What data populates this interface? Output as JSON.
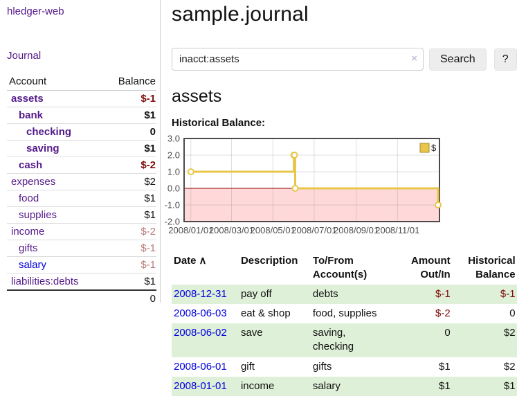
{
  "colors": {
    "link_visited": "#551a8b",
    "link_unvisited": "#0000e0",
    "negative_strong": "#7e0c0c",
    "negative_dim": "#bb7a7a",
    "row_stripe_green": "#dff0d8",
    "series_gold": "#e9c54a",
    "chart_negative_bg": "#ffd9d9",
    "chart_zero_line": "#8f0000"
  },
  "sidebar": {
    "app_title": "hledger-web",
    "journal_label": "Journal",
    "table": {
      "account_header": "Account",
      "balance_header": "Balance",
      "total": "0"
    },
    "accounts": [
      {
        "name": "assets",
        "depth": 0,
        "bold": true,
        "balance": "$-1",
        "neg": "strong",
        "link": "purple"
      },
      {
        "name": "bank",
        "depth": 1,
        "bold": true,
        "balance": "$1",
        "neg": "",
        "link": "purple"
      },
      {
        "name": "checking",
        "depth": 2,
        "bold": true,
        "balance": "0",
        "neg": "",
        "link": "purple"
      },
      {
        "name": "saving",
        "depth": 2,
        "bold": true,
        "balance": "$1",
        "neg": "",
        "link": "purple"
      },
      {
        "name": "cash",
        "depth": 1,
        "bold": true,
        "balance": "$-2",
        "neg": "strong",
        "link": "purple"
      },
      {
        "name": "expenses",
        "depth": 0,
        "bold": false,
        "balance": "$2",
        "neg": "",
        "link": "purple"
      },
      {
        "name": "food",
        "depth": 1,
        "bold": false,
        "balance": "$1",
        "neg": "",
        "link": "purple"
      },
      {
        "name": "supplies",
        "depth": 1,
        "bold": false,
        "balance": "$1",
        "neg": "",
        "link": "purple"
      },
      {
        "name": "income",
        "depth": 0,
        "bold": false,
        "balance": "$-2",
        "neg": "dim",
        "link": "purple"
      },
      {
        "name": "gifts",
        "depth": 1,
        "bold": false,
        "balance": "$-1",
        "neg": "dim",
        "link": "purple"
      },
      {
        "name": "salary",
        "depth": 1,
        "bold": false,
        "balance": "$-1",
        "neg": "dim",
        "link": "blue"
      },
      {
        "name": "liabilities:debts",
        "depth": 0,
        "bold": false,
        "balance": "$1",
        "neg": "",
        "link": "purple"
      }
    ]
  },
  "main": {
    "title": "sample.journal",
    "search": {
      "value": "inacct:assets",
      "clear_icon": "×",
      "button_label": "Search",
      "help_label": "?"
    },
    "account_heading": "assets",
    "chart_label": "Historical Balance:",
    "register": {
      "sort_icon": "∧",
      "columns": [
        {
          "label": "Date",
          "align": "left",
          "sortable": true
        },
        {
          "label": "Description",
          "align": "left",
          "sortable": false
        },
        {
          "label": "To/From Account(s)",
          "align": "left",
          "sortable": false
        },
        {
          "label": "Amount Out/In",
          "align": "right",
          "sortable": false
        },
        {
          "label": "Historical Balance",
          "align": "right",
          "sortable": false
        }
      ],
      "rows": [
        {
          "date": "2008-12-31",
          "description": "pay off",
          "accounts": "debts",
          "amount": "$-1",
          "balance": "$-1",
          "amount_neg": true,
          "balance_neg": true
        },
        {
          "date": "2008-06-03",
          "description": "eat & shop",
          "accounts": "food, supplies",
          "amount": "$-2",
          "balance": "0",
          "amount_neg": true,
          "balance_neg": false
        },
        {
          "date": "2008-06-02",
          "description": "save",
          "accounts": "saving, checking",
          "amount": "0",
          "balance": "$2",
          "amount_neg": false,
          "balance_neg": false
        },
        {
          "date": "2008-06-01",
          "description": "gift",
          "accounts": "gifts",
          "amount": "$1",
          "balance": "$2",
          "amount_neg": false,
          "balance_neg": false
        },
        {
          "date": "2008-01-01",
          "description": "income",
          "accounts": "salary",
          "amount": "$1",
          "balance": "$1",
          "amount_neg": false,
          "balance_neg": false
        }
      ]
    }
  },
  "chart_data": {
    "type": "line",
    "title": "Historical Balance:",
    "series": [
      {
        "name": "$",
        "step": true,
        "color": "#e9c54a",
        "points": [
          [
            "2008-01-01",
            1
          ],
          [
            "2008-06-01",
            2
          ],
          [
            "2008-06-02",
            2
          ],
          [
            "2008-06-03",
            0
          ],
          [
            "2008-12-31",
            -1
          ]
        ]
      }
    ],
    "x_ticks": [
      "2008/01/01",
      "2008/03/01",
      "2008/05/01",
      "2008/07/01",
      "2008/09/01",
      "2008/11/01"
    ],
    "y_ticks": [
      3.0,
      2.0,
      1.0,
      0.0,
      -1.0,
      -2.0
    ],
    "x_domain": [
      "2007-12-22",
      "2009-01-02"
    ],
    "y_domain": [
      -2.0,
      3.0
    ],
    "grid": true,
    "legend_position": "top-right",
    "negative_region_color": "#ffd9d9",
    "zero_line_color": "#8f0000"
  }
}
